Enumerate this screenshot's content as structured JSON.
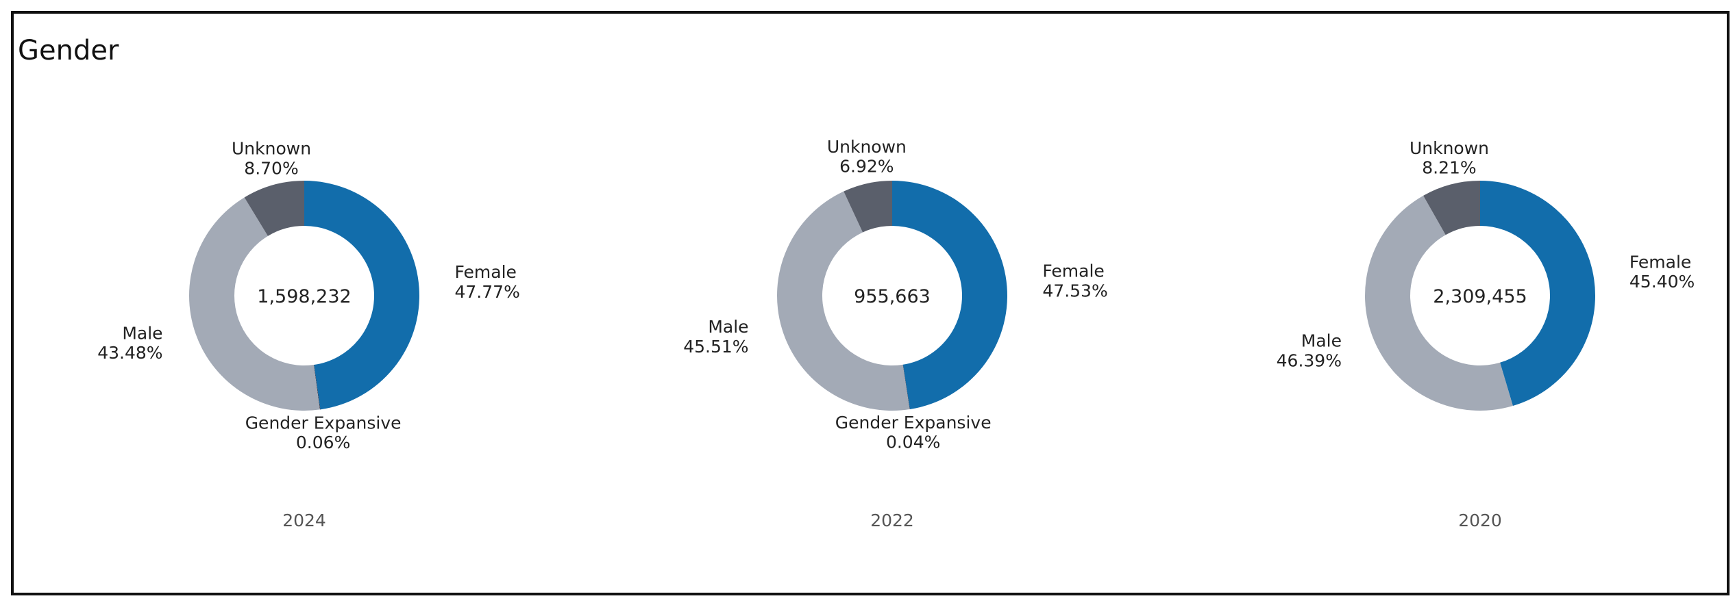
{
  "page": {
    "title": "Gender"
  },
  "colors": {
    "Female": "#126DAB",
    "Gender Expansive": "#1A1A2E",
    "Male": "#A3AAB6",
    "Unknown": "#5A5F6B"
  },
  "chart_data": [
    {
      "type": "pie",
      "variant": "donut",
      "caption": "2024",
      "center_label": "1,598,232",
      "slices": [
        {
          "label": "Female",
          "value": 47.77,
          "display": "47.77%"
        },
        {
          "label": "Gender Expansive",
          "value": 0.06,
          "display": "0.06%"
        },
        {
          "label": "Male",
          "value": 43.48,
          "display": "43.48%"
        },
        {
          "label": "Unknown",
          "value": 8.7,
          "display": "8.70%"
        }
      ]
    },
    {
      "type": "pie",
      "variant": "donut",
      "caption": "2022",
      "center_label": "955,663",
      "slices": [
        {
          "label": "Female",
          "value": 47.53,
          "display": "47.53%"
        },
        {
          "label": "Gender Expansive",
          "value": 0.04,
          "display": "0.04%"
        },
        {
          "label": "Male",
          "value": 45.51,
          "display": "45.51%"
        },
        {
          "label": "Unknown",
          "value": 6.92,
          "display": "6.92%"
        }
      ]
    },
    {
      "type": "pie",
      "variant": "donut",
      "caption": "2020",
      "center_label": "2,309,455",
      "slices": [
        {
          "label": "Female",
          "value": 45.4,
          "display": "45.40%"
        },
        {
          "label": "Male",
          "value": 46.39,
          "display": "46.39%"
        },
        {
          "label": "Unknown",
          "value": 8.21,
          "display": "8.21%"
        }
      ]
    }
  ]
}
